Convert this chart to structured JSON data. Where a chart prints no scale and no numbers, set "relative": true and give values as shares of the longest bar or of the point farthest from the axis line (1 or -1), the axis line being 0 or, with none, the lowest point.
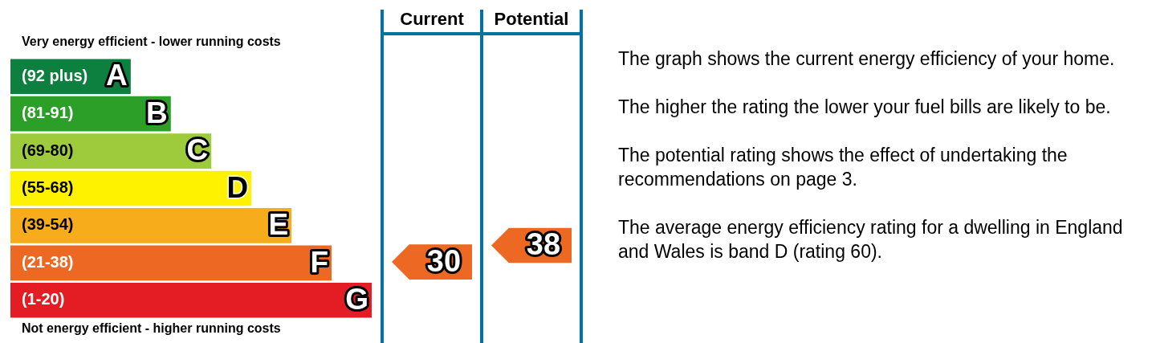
{
  "chart_data": {
    "type": "bar",
    "orientation": "horizontal",
    "relative": true,
    "title": "Very energy efficient - lower running costs",
    "xlabel": "Not energy efficient - higher running costs",
    "categories": [
      "A",
      "B",
      "C",
      "D",
      "E",
      "F",
      "G"
    ],
    "values": [
      0.333,
      0.444,
      0.556,
      0.667,
      0.778,
      0.889,
      1
    ],
    "colors": [
      "#0d7f3f",
      "#2c9f29",
      "#9dcb3c",
      "#fff200",
      "#f7ac1c",
      "#ed6823",
      "#e31d23"
    ],
    "annotations": [
      "Current",
      "Potential",
      "(92 plus)",
      "(81-91)",
      "(69-80)",
      "(55-68)",
      "(39-54)",
      "(21-38)",
      "(1-20)",
      "30",
      "38",
      "The graph shows the current energy efficiency of your home.",
      "The higher the rating the lower your fuel bills are likely to be.",
      "The potential rating shows the effect of undertaking the recommendations on page 3.",
      "The average energy efficiency rating for a dwelling in England and Wales is band D (rating 60)."
    ]
  }
}
